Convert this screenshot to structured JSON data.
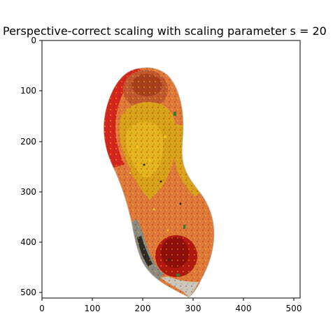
{
  "figure": {
    "title": "Perspective-correct scaling with scaling parameter s = 20",
    "xaxis": {
      "ticks": [
        "0",
        "100",
        "200",
        "300",
        "400",
        "500"
      ]
    },
    "yaxis": {
      "ticks": [
        "0",
        "100",
        "200",
        "300",
        "400",
        "500"
      ]
    }
  },
  "image": {
    "subject": "rendered point-cloud of a foot-shaped object seen from below",
    "palette": {
      "dark_red": "#a8120e",
      "red": "#d4261c",
      "orange": "#e07a3a",
      "light_orange": "#ec9a5a",
      "gold": "#d8a21a",
      "yellow": "#f2c81e",
      "gray": "#8a8a80",
      "light_gray": "#c8c8be",
      "dark": "#2a2a24",
      "green": "#3a7a2a"
    }
  }
}
